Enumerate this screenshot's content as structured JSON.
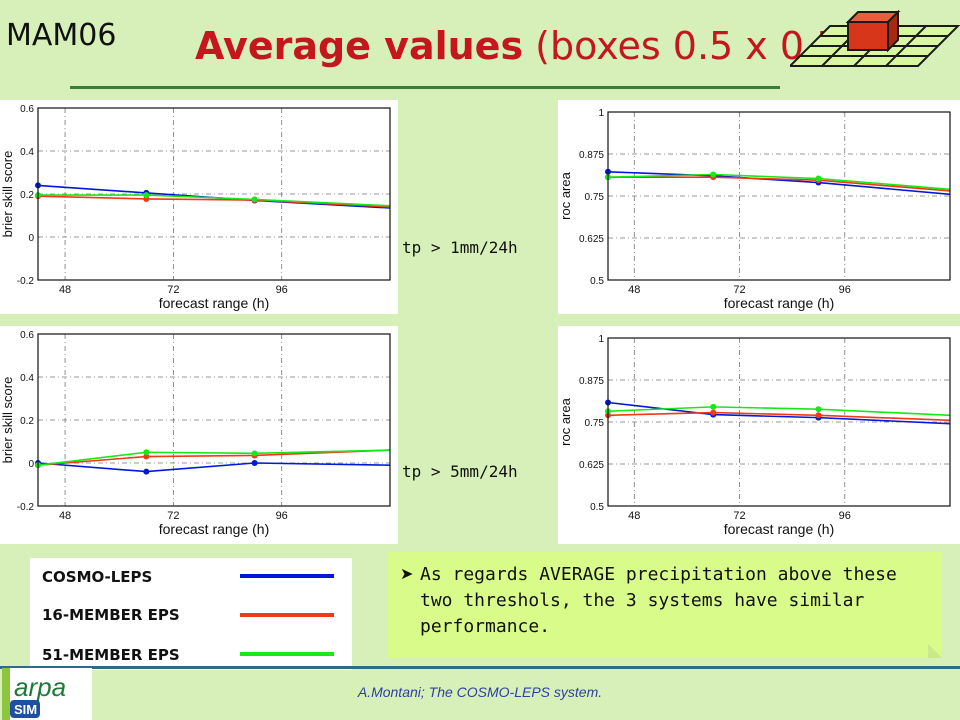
{
  "header": {
    "tag": "MAM06",
    "title_bold": "Average values",
    "title_rest": "(boxes 0.5 x 0.5)"
  },
  "thresholds": [
    "tp > 1mm/24h",
    "tp > 5mm/24h"
  ],
  "legend": {
    "items": [
      {
        "label": "COSMO-LEPS",
        "color": "#0018d8"
      },
      {
        "label": "16-MEMBER EPS",
        "color": "#f03a14"
      },
      {
        "label": "51-MEMBER EPS",
        "color": "#18e818"
      }
    ]
  },
  "note": {
    "text": "As regards AVERAGE precipitation above these two threshols, the 3 systems have similar performance."
  },
  "footer": {
    "credit": "A.Montani; The COSMO-LEPS system."
  },
  "logo": {
    "text_top": "arpa",
    "text_bottom": "SIM"
  },
  "chart_data": [
    {
      "type": "line",
      "xlabel": "forecast range (h)",
      "ylabel": "brier skill score",
      "xlim": [
        42,
        120
      ],
      "ylim": [
        -0.2,
        0.6
      ],
      "xticks": [
        48,
        72,
        96
      ],
      "yticks": [
        -0.2,
        0,
        0.2,
        0.4,
        0.6
      ],
      "grid": true,
      "series": [
        {
          "color": "#0018d8",
          "points": [
            [
              42,
              0.24
            ],
            [
              66,
              0.205
            ],
            [
              90,
              0.17
            ],
            [
              120,
              0.135
            ]
          ]
        },
        {
          "color": "#f03a14",
          "points": [
            [
              42,
              0.19
            ],
            [
              66,
              0.177
            ],
            [
              90,
              0.172
            ],
            [
              120,
              0.14
            ]
          ]
        },
        {
          "color": "#18e818",
          "points": [
            [
              42,
              0.195
            ],
            [
              66,
              0.195
            ],
            [
              90,
              0.175
            ],
            [
              120,
              0.145
            ]
          ]
        }
      ]
    },
    {
      "type": "line",
      "xlabel": "forecast range (h)",
      "ylabel": "roc area",
      "xlim": [
        42,
        120
      ],
      "ylim": [
        0.5,
        1
      ],
      "xticks": [
        48,
        72,
        96
      ],
      "yticks": [
        "0.5",
        "0.625",
        "0.75",
        "0.875",
        "1"
      ],
      "grid": true,
      "series": [
        {
          "color": "#0018d8",
          "points": [
            [
              42,
              0.822
            ],
            [
              66,
              0.81
            ],
            [
              90,
              0.79
            ],
            [
              120,
              0.755
            ]
          ]
        },
        {
          "color": "#f03a14",
          "points": [
            [
              42,
              0.806
            ],
            [
              66,
              0.806
            ],
            [
              90,
              0.797
            ],
            [
              120,
              0.765
            ]
          ]
        },
        {
          "color": "#18e818",
          "points": [
            [
              42,
              0.806
            ],
            [
              66,
              0.814
            ],
            [
              90,
              0.802
            ],
            [
              120,
              0.77
            ]
          ]
        }
      ]
    },
    {
      "type": "line",
      "xlabel": "forecast range (h)",
      "ylabel": "brier skill score",
      "xlim": [
        42,
        120
      ],
      "ylim": [
        -0.2,
        0.6
      ],
      "xticks": [
        48,
        72,
        96
      ],
      "yticks": [
        -0.2,
        0,
        0.2,
        0.4,
        0.6
      ],
      "grid": true,
      "series": [
        {
          "color": "#0018d8",
          "points": [
            [
              42,
              0.0
            ],
            [
              66,
              -0.04
            ],
            [
              90,
              0.0
            ],
            [
              120,
              -0.01
            ]
          ]
        },
        {
          "color": "#f03a14",
          "points": [
            [
              42,
              -0.01
            ],
            [
              66,
              0.03
            ],
            [
              90,
              0.035
            ],
            [
              120,
              0.06
            ]
          ]
        },
        {
          "color": "#18e818",
          "points": [
            [
              42,
              -0.01
            ],
            [
              66,
              0.05
            ],
            [
              90,
              0.045
            ],
            [
              120,
              0.06
            ]
          ]
        }
      ]
    },
    {
      "type": "line",
      "xlabel": "forecast range (h)",
      "ylabel": "roc area",
      "xlim": [
        42,
        120
      ],
      "ylim": [
        0.5,
        1
      ],
      "xticks": [
        48,
        72,
        96
      ],
      "yticks": [
        "0.5",
        "0.625",
        "0.75",
        "0.875",
        "1"
      ],
      "grid": true,
      "series": [
        {
          "color": "#0018d8",
          "points": [
            [
              42,
              0.808
            ],
            [
              66,
              0.772
            ],
            [
              90,
              0.763
            ],
            [
              120,
              0.745
            ]
          ]
        },
        {
          "color": "#f03a14",
          "points": [
            [
              42,
              0.77
            ],
            [
              66,
              0.778
            ],
            [
              90,
              0.77
            ],
            [
              120,
              0.755
            ]
          ]
        },
        {
          "color": "#18e818",
          "points": [
            [
              42,
              0.782
            ],
            [
              66,
              0.795
            ],
            [
              90,
              0.788
            ],
            [
              120,
              0.77
            ]
          ]
        }
      ]
    }
  ]
}
